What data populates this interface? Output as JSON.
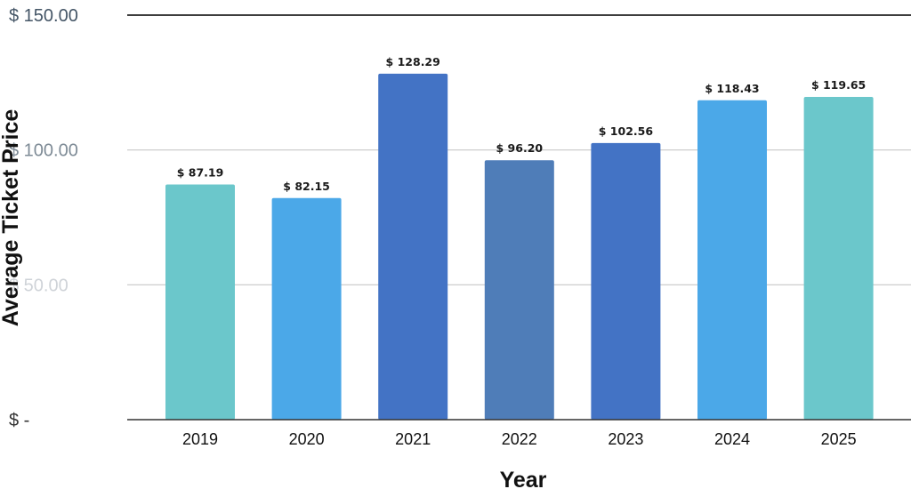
{
  "chart_data": {
    "type": "bar",
    "xlabel": "Year",
    "ylabel": "Average Ticket Price",
    "ylim": [
      0,
      150
    ],
    "yticks": [
      {
        "value": 0,
        "label": "$ -"
      },
      {
        "value": 50,
        "label": "$ 50.00"
      },
      {
        "value": 100,
        "label": "$ 100.00"
      },
      {
        "value": 150,
        "label": "$ 150.00"
      }
    ],
    "categories": [
      "2019",
      "2020",
      "2021",
      "2022",
      "2023",
      "2024",
      "2025"
    ],
    "values": [
      87.19,
      82.15,
      128.29,
      96.2,
      102.56,
      118.43,
      119.65
    ],
    "data_labels": [
      "$ 87.19",
      "$ 82.15",
      "$ 128.29",
      "$ 96.20",
      "$ 102.56",
      "$ 118.43",
      "$ 119.65"
    ],
    "bar_colors": [
      "#6BC7CB",
      "#4BA8E8",
      "#4373C5",
      "#4F7DB8",
      "#4373C5",
      "#4BA8E8",
      "#6BC7CB"
    ],
    "ytick_colors": [
      "#333333",
      "#cfd3d8",
      "#7e8b96",
      "#445566"
    ],
    "grid": true,
    "legend": "none"
  }
}
